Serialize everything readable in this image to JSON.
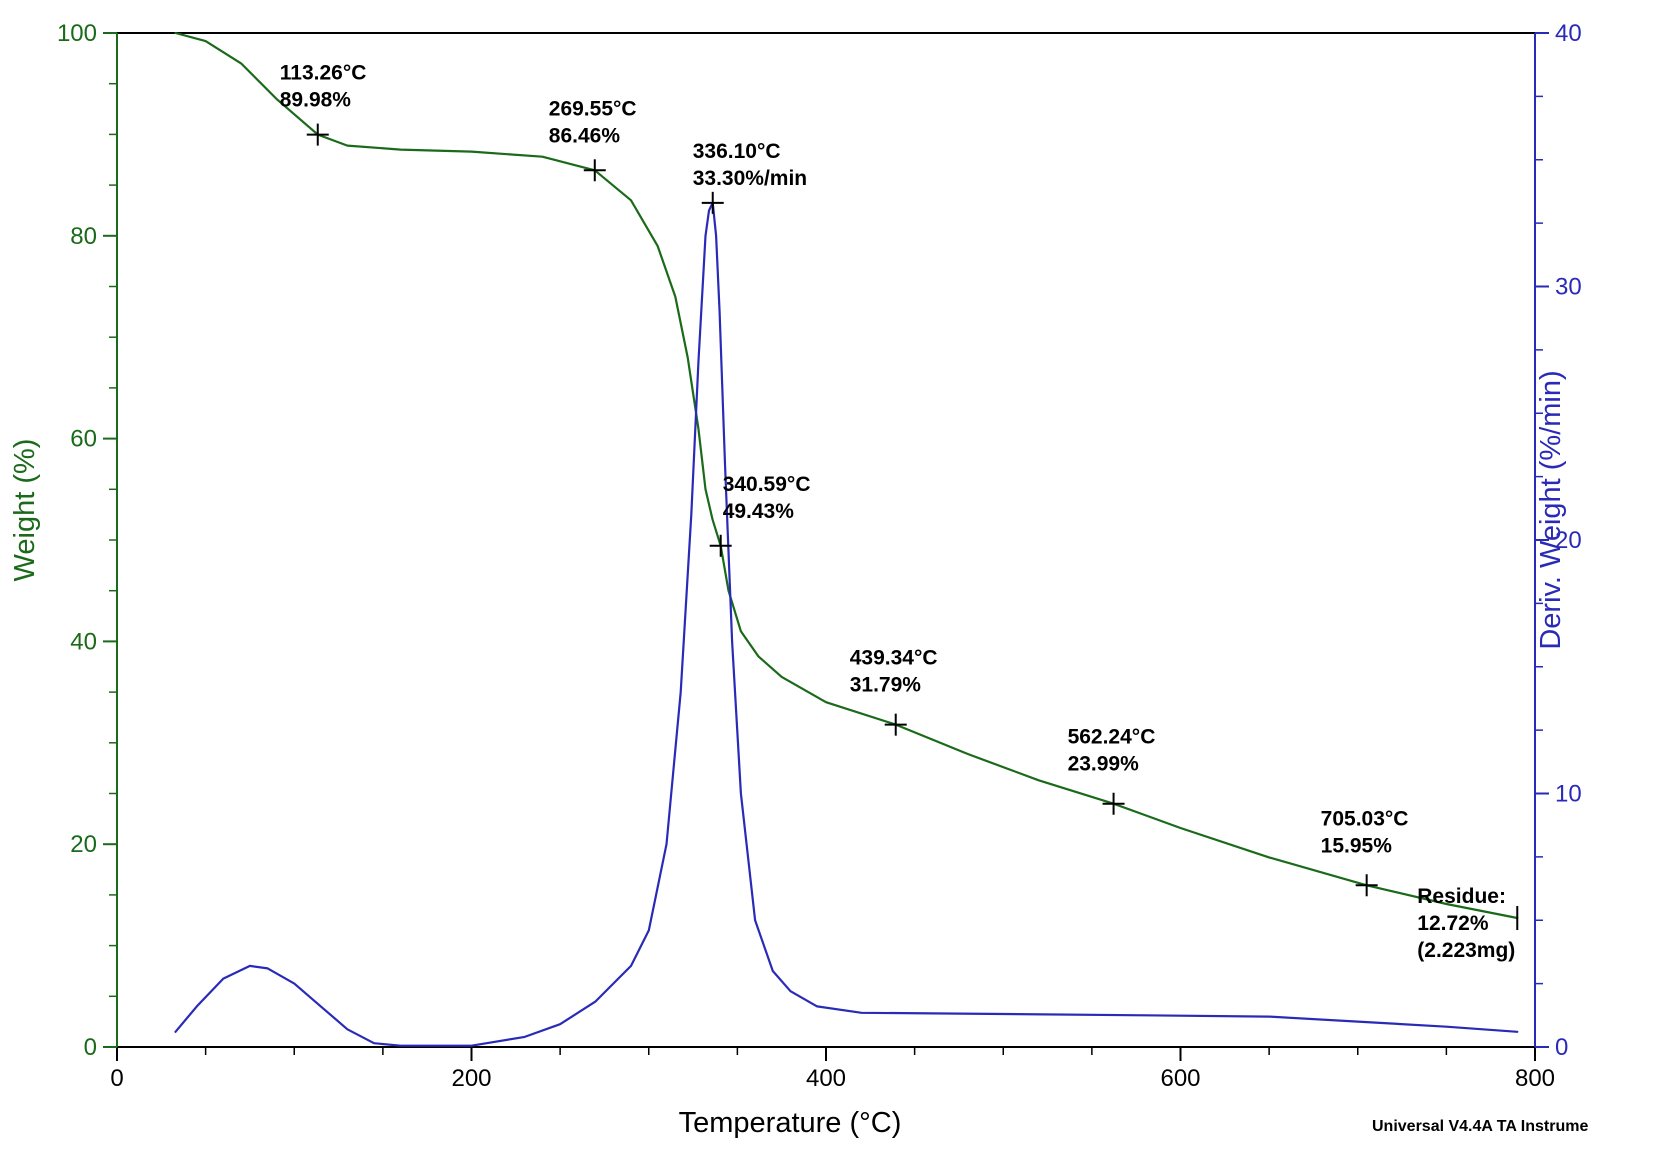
{
  "chart_data": {
    "type": "line",
    "xlabel": "Temperature (°C)",
    "ylabel": "Weight (%)",
    "y2label": "Deriv. Weight (%/min)",
    "xlim": [
      0,
      800
    ],
    "ylim": [
      0,
      100
    ],
    "y2lim": [
      0,
      40
    ],
    "x_ticks": [
      0,
      200,
      400,
      600,
      800
    ],
    "y_ticks": [
      0,
      20,
      40,
      60,
      80,
      100
    ],
    "y2_ticks": [
      0,
      10,
      20,
      30,
      40
    ],
    "colors": {
      "weight": "#1a6a1a",
      "deriv": "#2a2ab8",
      "axis": "#000000"
    },
    "series": [
      {
        "axis": "left",
        "color": "#1a6a1a",
        "x": [
          33,
          50,
          70,
          90,
          113.26,
          130,
          160,
          200,
          240,
          269.55,
          290,
          305,
          315,
          322,
          328,
          332,
          336,
          340.59,
          345,
          352,
          362,
          375,
          400,
          439.34,
          480,
          520,
          562.24,
          600,
          650,
          705.03,
          750,
          790
        ],
        "y": [
          100,
          99.2,
          97,
          93.5,
          89.98,
          88.9,
          88.5,
          88.3,
          87.8,
          86.46,
          83.5,
          79,
          74,
          68,
          61,
          55,
          52,
          49.43,
          45,
          41,
          38.5,
          36.5,
          34,
          31.79,
          28.9,
          26.3,
          23.99,
          21.6,
          18.7,
          15.95,
          14.1,
          12.72
        ]
      },
      {
        "axis": "right",
        "color": "#2a2ab8",
        "x": [
          33,
          45,
          60,
          75,
          85,
          100,
          115,
          130,
          145,
          160,
          200,
          230,
          250,
          270,
          290,
          300,
          310,
          318,
          324,
          328,
          332,
          334,
          336.1,
          338,
          340,
          343,
          347,
          352,
          360,
          370,
          380,
          395,
          420,
          500,
          580,
          650,
          700,
          750,
          790
        ],
        "y": [
          0.6,
          1.6,
          2.7,
          3.2,
          3.1,
          2.5,
          1.6,
          0.7,
          0.15,
          0.05,
          0.05,
          0.4,
          0.9,
          1.8,
          3.2,
          4.6,
          8,
          14,
          21,
          27,
          32,
          33,
          33.3,
          32,
          29,
          23,
          16,
          10,
          5,
          3,
          2.2,
          1.6,
          1.35,
          1.3,
          1.25,
          1.2,
          1.0,
          0.8,
          0.6
        ]
      }
    ],
    "annotations": [
      {
        "x": 113.26,
        "y": 89.98,
        "axis": "left",
        "lines": [
          "113.26°C",
          "89.98%"
        ]
      },
      {
        "x": 269.55,
        "y": 86.46,
        "axis": "left",
        "lines": [
          "269.55°C",
          "86.46%"
        ]
      },
      {
        "x": 336.1,
        "y": 33.3,
        "axis": "right",
        "lines": [
          "336.10°C",
          "33.30%/min"
        ]
      },
      {
        "x": 340.59,
        "y": 49.43,
        "axis": "left",
        "lines": [
          "340.59°C",
          "49.43%"
        ]
      },
      {
        "x": 439.34,
        "y": 31.79,
        "axis": "left",
        "lines": [
          "439.34°C",
          "31.79%"
        ]
      },
      {
        "x": 562.24,
        "y": 23.99,
        "axis": "left",
        "lines": [
          "562.24°C",
          "23.99%"
        ]
      },
      {
        "x": 705.03,
        "y": 15.95,
        "axis": "left",
        "lines": [
          "705.03°C",
          "15.95%"
        ]
      },
      {
        "x": 790,
        "y": 12.72,
        "axis": "left",
        "lines": [
          "Residue:",
          "12.72%",
          "(2.223mg)"
        ]
      }
    ],
    "footer": "Universal V4.4A TA Instrume"
  }
}
